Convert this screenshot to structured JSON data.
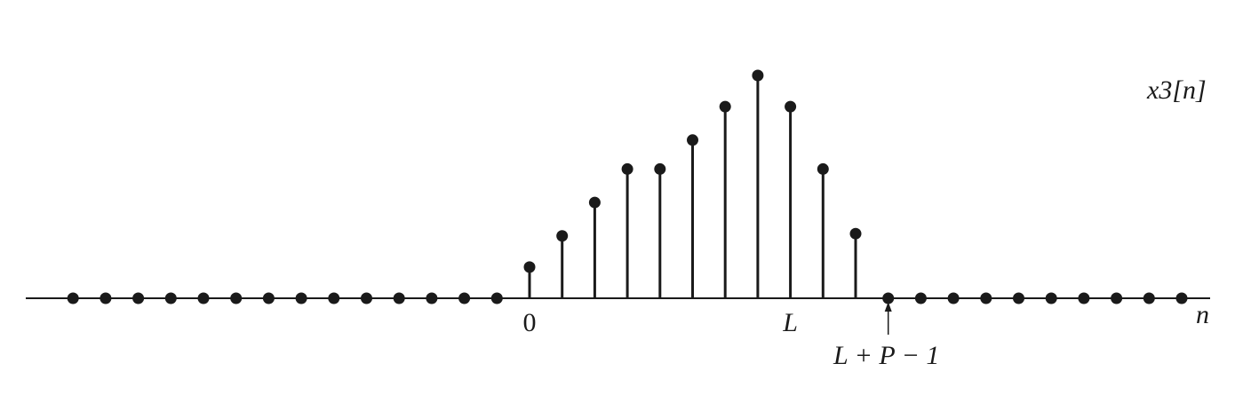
{
  "chart_data": {
    "type": "stem",
    "title": "x3[n]",
    "xlabel": "n",
    "x": [
      -14,
      -13,
      -12,
      -11,
      -10,
      -9,
      -8,
      -7,
      -6,
      -5,
      -4,
      -3,
      -2,
      -1,
      0,
      1,
      2,
      3,
      4,
      5,
      6,
      7,
      8,
      9,
      10,
      11,
      12,
      13,
      14,
      15,
      16,
      17,
      18,
      19,
      20
    ],
    "values": [
      0,
      0,
      0,
      0,
      0,
      0,
      0,
      0,
      0,
      0,
      0,
      0,
      0,
      0,
      0.14,
      0.28,
      0.43,
      0.58,
      0.58,
      0.71,
      0.86,
      1.0,
      0.86,
      0.58,
      0.29,
      0,
      0,
      0,
      0,
      0,
      0,
      0,
      0,
      0,
      0
    ],
    "tick_labels": [
      {
        "x": 0,
        "label": "0"
      },
      {
        "x": 8,
        "label": "L"
      }
    ],
    "annotation": {
      "x": 11,
      "label": "L + P − 1"
    },
    "xlim": [
      -15.5,
      21.5
    ],
    "ylim": [
      0,
      1.0
    ],
    "grid": false,
    "colors": {
      "stem": "#1a1a1a",
      "axis": "#1a1a1a"
    }
  }
}
